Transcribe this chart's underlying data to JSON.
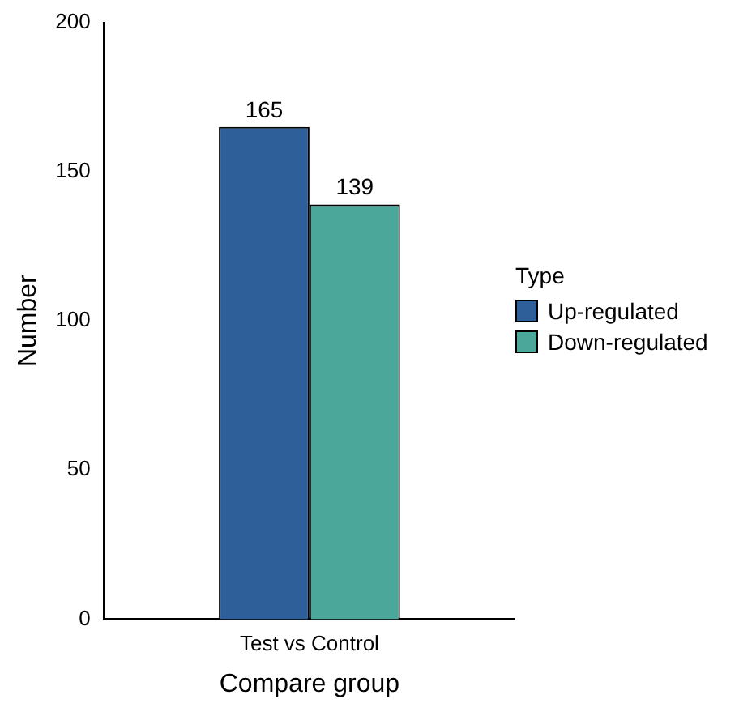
{
  "chart_data": {
    "type": "bar",
    "xlabel": "Compare group",
    "ylabel": "Number",
    "legend_title": "Type",
    "categories": [
      "Test vs Control"
    ],
    "series": [
      {
        "name": "Up-regulated",
        "color": "#2e5f99",
        "values": [
          165
        ]
      },
      {
        "name": "Down-regulated",
        "color": "#4ca79b",
        "values": [
          139
        ]
      }
    ],
    "ylim": [
      0,
      200
    ],
    "yticks": [
      0,
      50,
      100,
      150,
      200
    ],
    "grid": false,
    "legend": "right",
    "data_labels": true
  }
}
